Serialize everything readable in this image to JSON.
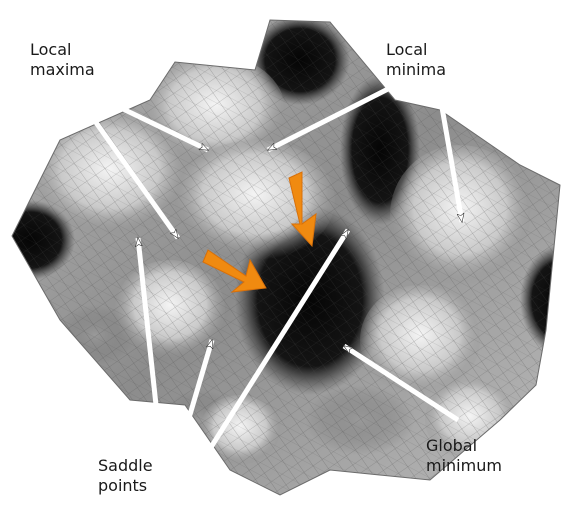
{
  "labels": {
    "local_maxima": [
      "Local",
      "maxima"
    ],
    "local_minima": [
      "Local",
      "minima"
    ],
    "saddle_points": [
      "Saddle",
      "points"
    ],
    "global_minimum": [
      "Global",
      "minimum"
    ]
  },
  "colors": {
    "mesh_dark": "#1a1a1a",
    "mesh_light": "#e8e8e8",
    "mesh_line": "#555555",
    "pointer_arrow": "#ffffff",
    "pointer_outline": "#333333",
    "highlight_arrow": "#f08a10"
  }
}
